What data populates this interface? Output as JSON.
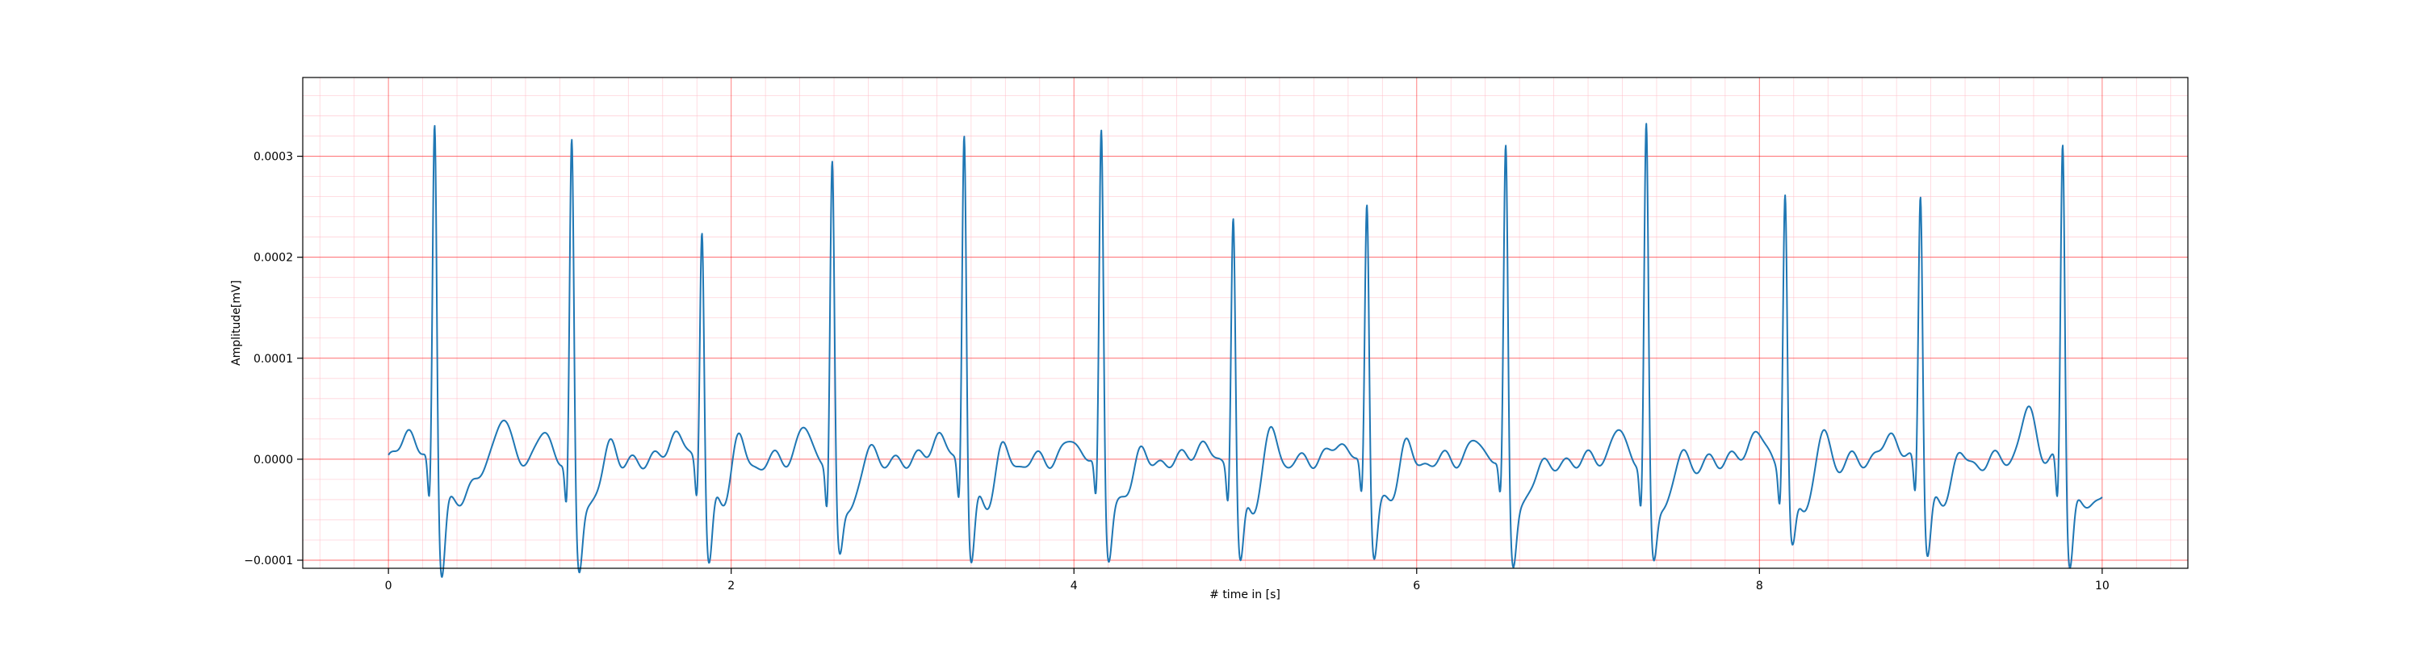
{
  "chart_data": {
    "type": "line",
    "title": "",
    "xlabel": "# time in [s]",
    "ylabel": "Amplitude[mV]",
    "xlim": [
      -0.5,
      10.5
    ],
    "ylim": [
      -0.000108,
      0.000378
    ],
    "x_ticks": [
      0,
      2,
      4,
      6,
      8,
      10
    ],
    "x_tick_labels": [
      "0",
      "2",
      "4",
      "6",
      "8",
      "10"
    ],
    "y_ticks": [
      -0.0001,
      0.0,
      0.0001,
      0.0002,
      0.0003
    ],
    "y_tick_labels": [
      "−0.0001",
      "0.0000",
      "0.0001",
      "0.0002",
      "0.0003"
    ],
    "grid": true,
    "grid_color": "#ff0000",
    "minor_grid_color": "#ffc0cb",
    "line_color": "#1f77b4",
    "x_start": 0,
    "x_end": 10,
    "beats": [
      {
        "t": 0.27,
        "r": 0.000355,
        "s": -8.6e-05,
        "q": -5e-05
      },
      {
        "t": 1.07,
        "r": 0.00033,
        "s": -8.5e-05,
        "q": -5e-05
      },
      {
        "t": 1.83,
        "r": 0.000253,
        "s": -8e-05,
        "q": -4e-05
      },
      {
        "t": 2.59,
        "r": 0.000309,
        "s": -7.2e-05,
        "q": -5e-05
      },
      {
        "t": 3.36,
        "r": 0.000347,
        "s": -7.8e-05,
        "q": -4.5e-05
      },
      {
        "t": 4.16,
        "r": 0.000342,
        "s": -7e-05,
        "q": -4.5e-05
      },
      {
        "t": 4.93,
        "r": 0.000263,
        "s": -8.5e-05,
        "q": -4e-05
      },
      {
        "t": 5.71,
        "r": 0.000272,
        "s": -6.8e-05,
        "q": -4e-05
      },
      {
        "t": 6.52,
        "r": 0.000325,
        "s": -7.8e-05,
        "q": -4e-05
      },
      {
        "t": 7.34,
        "r": 0.000346,
        "s": -7.8e-05,
        "q": -5e-05
      },
      {
        "t": 8.15,
        "r": 0.000283,
        "s": -7e-05,
        "q": -4e-05
      },
      {
        "t": 8.94,
        "r": 0.000286,
        "s": -6.9e-05,
        "q": -4e-05
      },
      {
        "t": 9.77,
        "r": 0.000336,
        "s": -7.9e-05,
        "q": -5e-05
      }
    ],
    "t_waves": [
      {
        "t": 0.12,
        "a": 3e-05
      },
      {
        "t": 0.48,
        "a": 1.5e-05
      },
      {
        "t": 0.66,
        "a": 4.5e-05
      },
      {
        "t": 0.91,
        "a": 2.5e-05
      },
      {
        "t": 1.29,
        "a": 5.5e-05
      },
      {
        "t": 1.68,
        "a": 2.8e-05
      },
      {
        "t": 2.04,
        "a": 6e-05
      },
      {
        "t": 2.43,
        "a": 3e-05
      },
      {
        "t": 2.81,
        "a": 5.2e-05
      },
      {
        "t": 3.21,
        "a": 2.5e-05
      },
      {
        "t": 3.58,
        "a": 4.7e-05
      },
      {
        "t": 3.99,
        "a": 2e-05
      },
      {
        "t": 4.38,
        "a": 4.7e-05
      },
      {
        "t": 4.74,
        "a": 1.5e-05
      },
      {
        "t": 5.15,
        "a": 6.6e-05
      },
      {
        "t": 5.55,
        "a": 1.8e-05
      },
      {
        "t": 5.93,
        "a": 5.2e-05
      },
      {
        "t": 6.35,
        "a": 1.8e-05
      },
      {
        "t": 6.73,
        "a": 4e-05
      },
      {
        "t": 7.18,
        "a": 2.8e-05
      },
      {
        "t": 7.55,
        "a": 4.7e-05
      },
      {
        "t": 7.98,
        "a": 2.8e-05
      },
      {
        "t": 8.37,
        "a": 6.2e-05
      },
      {
        "t": 8.77,
        "a": 2.6e-05
      },
      {
        "t": 9.16,
        "a": 4.2e-05
      },
      {
        "t": 9.57,
        "a": 5e-05
      }
    ]
  }
}
